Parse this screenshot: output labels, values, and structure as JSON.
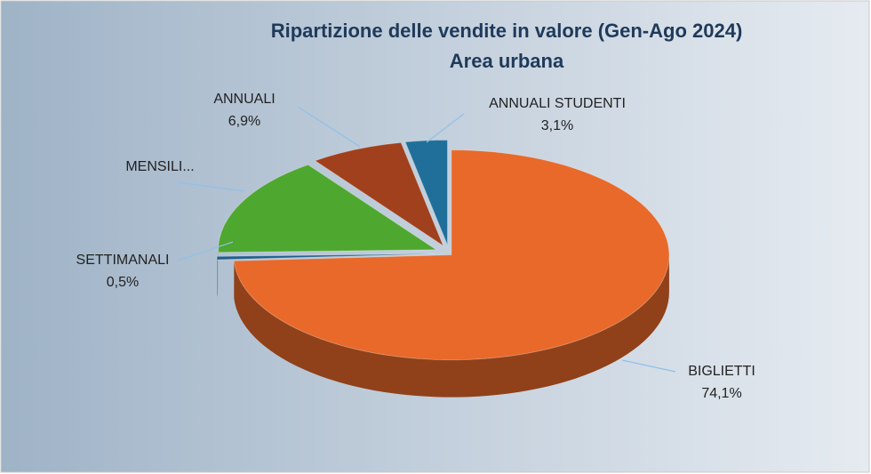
{
  "chart_data": {
    "type": "pie3d",
    "title": "Ripartizione delle vendite in valore (Gen-Ago 2024)",
    "subtitle": "Area urbana",
    "categories": [
      "BIGLIETTI",
      "SETTIMANALI",
      "MENSILI...",
      "ANNUALI",
      "ANNUALI STUDENTI"
    ],
    "values": [
      74.1,
      0.5,
      15.4,
      6.9,
      3.1
    ],
    "value_labels": [
      "74,1%",
      "0,5%",
      null,
      "6,9%",
      "3,1%"
    ],
    "colors": [
      "#e8692a",
      "#1f5f8b",
      "#4ea72e",
      "#a0401c",
      "#1f6f9a"
    ]
  }
}
